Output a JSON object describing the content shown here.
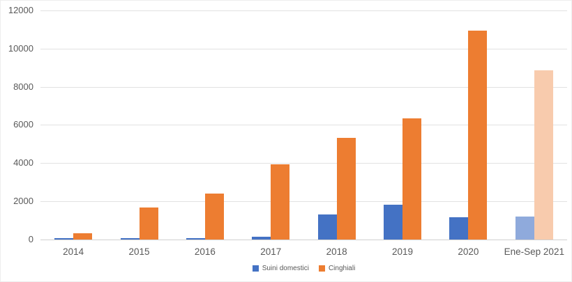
{
  "chart_data": {
    "type": "bar",
    "title": "",
    "categories": [
      "2014",
      "2015",
      "2016",
      "2017",
      "2018",
      "2019",
      "2020",
      "Ene-Sep 2021"
    ],
    "series": [
      {
        "name": "Suini domestici",
        "color": "#4472C4",
        "highlight_color": "#8FAADC",
        "values": [
          70,
          55,
          80,
          130,
          1330,
          1820,
          1180,
          1200
        ]
      },
      {
        "name": "Cinghiali",
        "color": "#ED7D31",
        "highlight_color": "#F8CBAD",
        "values": [
          320,
          1660,
          2400,
          3930,
          5330,
          6360,
          10930,
          8880
        ]
      }
    ],
    "highlighted_category_index": 7,
    "xlabel": "",
    "ylabel": "",
    "y_ticks": [
      0,
      2000,
      4000,
      6000,
      8000,
      10000,
      12000
    ],
    "ylim": [
      0,
      12000
    ],
    "grid": true,
    "legend_position": "bottom",
    "axis_text_color": "#595959",
    "gridline_color": "#E2E2E2"
  }
}
